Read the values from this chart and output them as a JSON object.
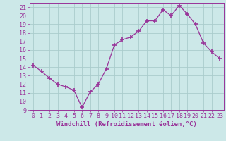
{
  "x": [
    0,
    1,
    2,
    3,
    4,
    5,
    6,
    7,
    8,
    9,
    10,
    11,
    12,
    13,
    14,
    15,
    16,
    17,
    18,
    19,
    20,
    21,
    22,
    23
  ],
  "y": [
    14.2,
    13.5,
    12.7,
    12.0,
    11.7,
    11.3,
    9.3,
    11.1,
    12.0,
    13.8,
    16.6,
    17.2,
    17.5,
    18.2,
    19.4,
    19.4,
    20.7,
    20.0,
    21.2,
    20.2,
    19.0,
    16.8,
    15.8,
    15.0
  ],
  "line_color": "#993399",
  "marker": "+",
  "marker_size": 4,
  "marker_edge_width": 1.2,
  "line_width": 0.9,
  "xlabel": "Windchill (Refroidissement éolien,°C)",
  "ylim": [
    9,
    21.5
  ],
  "xlim": [
    -0.5,
    23.5
  ],
  "yticks": [
    9,
    10,
    11,
    12,
    13,
    14,
    15,
    16,
    17,
    18,
    19,
    20,
    21
  ],
  "xticks": [
    0,
    1,
    2,
    3,
    4,
    5,
    6,
    7,
    8,
    9,
    10,
    11,
    12,
    13,
    14,
    15,
    16,
    17,
    18,
    19,
    20,
    21,
    22,
    23
  ],
  "background_color": "#cce8e8",
  "grid_color": "#aacccc",
  "line_label_color": "#993399",
  "tick_color": "#993399",
  "xlabel_fontsize": 6.5,
  "tick_fontsize": 6
}
